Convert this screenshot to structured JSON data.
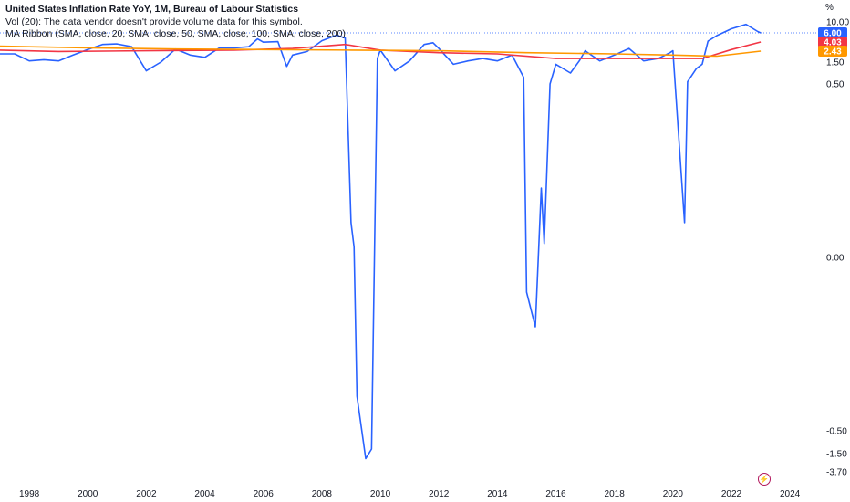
{
  "legend": {
    "title": "United States Inflation Rate YoY, 1M, Bureau of Labour Statistics",
    "volume": "Vol (20): The data vendor doesn't provide volume data for this symbol.",
    "ma_ribbon": "MA Ribbon (SMA, close, 20, SMA, close, 50, SMA, close, 100, SMA, close, 200)"
  },
  "unit_label": "%",
  "colors": {
    "series": "#2962ff",
    "ma_red": "#f23645",
    "ma_orange": "#ff9800",
    "ma_gold": "#ffb74d",
    "logo": "#b2185d"
  },
  "chart_data": {
    "type": "line",
    "x_ticks": [
      "1998",
      "2000",
      "2002",
      "2004",
      "2006",
      "2008",
      "2010",
      "2012",
      "2014",
      "2016",
      "2018",
      "2020",
      "2022",
      "2024"
    ],
    "y_ticks": [
      "10.00",
      "1.50",
      "0.50",
      "0.00",
      "-0.50",
      "-1.50",
      "-3.70"
    ],
    "price_badges": [
      {
        "label": "6.00",
        "color": "#2962ff",
        "value": 6.0
      },
      {
        "label": "4.03",
        "color": "#f23645",
        "value": 4.03
      },
      {
        "label": "2.43",
        "color": "#ff9800",
        "value": 2.43
      }
    ],
    "series": [
      {
        "name": "CPI YoY",
        "color": "#2962ff",
        "points": [
          [
            1997.0,
            2.2
          ],
          [
            1997.5,
            2.2
          ],
          [
            1998.0,
            1.6
          ],
          [
            1998.5,
            1.7
          ],
          [
            1999.0,
            1.6
          ],
          [
            1999.5,
            2.1
          ],
          [
            2000.0,
            2.7
          ],
          [
            2000.5,
            3.6
          ],
          [
            2001.0,
            3.7
          ],
          [
            2001.5,
            3.2
          ],
          [
            2002.0,
            1.1
          ],
          [
            2002.5,
            1.5
          ],
          [
            2003.0,
            2.8
          ],
          [
            2003.5,
            2.1
          ],
          [
            2004.0,
            1.9
          ],
          [
            2004.5,
            3.0
          ],
          [
            2005.0,
            3.0
          ],
          [
            2005.5,
            3.2
          ],
          [
            2005.8,
            4.7
          ],
          [
            2006.0,
            4.0
          ],
          [
            2006.5,
            4.1
          ],
          [
            2006.8,
            1.3
          ],
          [
            2007.0,
            2.1
          ],
          [
            2007.5,
            2.4
          ],
          [
            2008.0,
            4.3
          ],
          [
            2008.5,
            5.5
          ],
          [
            2008.8,
            4.9
          ],
          [
            2009.0,
            0.1
          ],
          [
            2009.1,
            0.03
          ],
          [
            2009.2,
            -0.4
          ],
          [
            2009.5,
            -2.1
          ],
          [
            2009.7,
            -1.3
          ],
          [
            2009.9,
            1.8
          ],
          [
            2010.0,
            2.6
          ],
          [
            2010.5,
            1.1
          ],
          [
            2011.0,
            1.6
          ],
          [
            2011.5,
            3.6
          ],
          [
            2011.8,
            3.9
          ],
          [
            2012.0,
            2.9
          ],
          [
            2012.5,
            1.4
          ],
          [
            2013.0,
            1.6
          ],
          [
            2013.5,
            1.8
          ],
          [
            2014.0,
            1.6
          ],
          [
            2014.5,
            2.1
          ],
          [
            2014.9,
            0.8
          ],
          [
            2015.0,
            -0.1
          ],
          [
            2015.3,
            -0.2
          ],
          [
            2015.5,
            0.2
          ],
          [
            2015.6,
            0.04
          ],
          [
            2015.8,
            0.5
          ],
          [
            2016.0,
            1.4
          ],
          [
            2016.5,
            1.0
          ],
          [
            2016.8,
            1.6
          ],
          [
            2017.0,
            2.5
          ],
          [
            2017.5,
            1.6
          ],
          [
            2018.0,
            2.1
          ],
          [
            2018.5,
            2.9
          ],
          [
            2019.0,
            1.6
          ],
          [
            2019.5,
            1.8
          ],
          [
            2019.9,
            2.3
          ],
          [
            2020.0,
            2.5
          ],
          [
            2020.4,
            0.1
          ],
          [
            2020.5,
            0.6
          ],
          [
            2020.8,
            1.2
          ],
          [
            2021.0,
            1.4
          ],
          [
            2021.2,
            4.2
          ],
          [
            2021.5,
            5.4
          ],
          [
            2021.9,
            7.0
          ],
          [
            2022.0,
            7.5
          ],
          [
            2022.5,
            9.1
          ],
          [
            2022.9,
            6.5
          ],
          [
            2023.0,
            6.0
          ]
        ]
      },
      {
        "name": "MA 100",
        "color": "#f23645",
        "points": [
          [
            1997.0,
            2.6
          ],
          [
            1999.0,
            2.4
          ],
          [
            2002.0,
            2.5
          ],
          [
            2005.0,
            2.6
          ],
          [
            2007.0,
            2.9
          ],
          [
            2008.8,
            3.6
          ],
          [
            2010.0,
            2.6
          ],
          [
            2012.0,
            2.3
          ],
          [
            2014.0,
            2.2
          ],
          [
            2016.0,
            1.8
          ],
          [
            2018.0,
            1.8
          ],
          [
            2020.0,
            1.8
          ],
          [
            2021.0,
            1.8
          ],
          [
            2022.0,
            2.7
          ],
          [
            2023.0,
            4.03
          ]
        ]
      },
      {
        "name": "MA 200",
        "color": "#ff9800",
        "points": [
          [
            1997.0,
            3.3
          ],
          [
            2000.0,
            3.0
          ],
          [
            2003.0,
            2.8
          ],
          [
            2006.0,
            2.7
          ],
          [
            2009.0,
            2.6
          ],
          [
            2012.0,
            2.5
          ],
          [
            2015.0,
            2.3
          ],
          [
            2018.0,
            2.2
          ],
          [
            2020.0,
            2.1
          ],
          [
            2021.5,
            2.0
          ],
          [
            2023.0,
            2.43
          ]
        ]
      }
    ],
    "xlim": [
      1997.0,
      2024.9
    ]
  }
}
